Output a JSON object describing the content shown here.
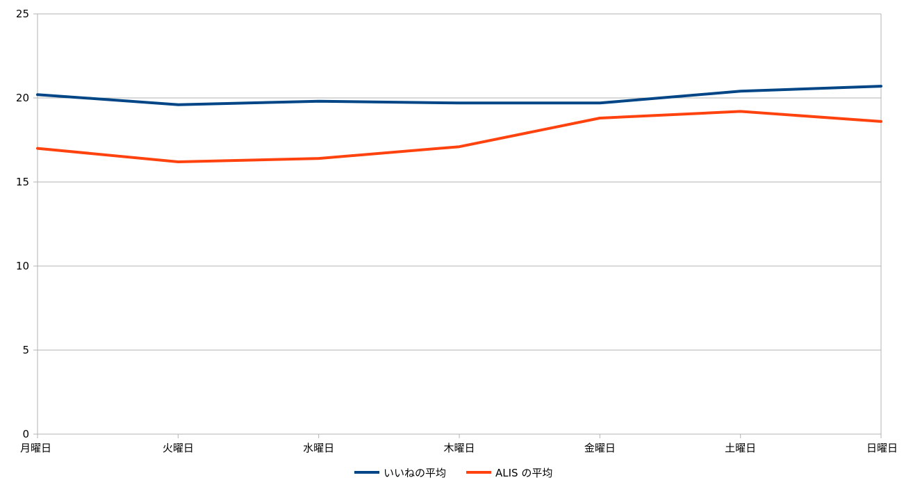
{
  "chart_data": {
    "type": "line",
    "categories": [
      "月曜日",
      "火曜日",
      "水曜日",
      "木曜日",
      "金曜日",
      "土曜日",
      "日曜日"
    ],
    "series": [
      {
        "name": "いいねの平均",
        "color": "#004586",
        "values": [
          20.2,
          19.6,
          19.8,
          19.7,
          19.7,
          20.4,
          20.7
        ]
      },
      {
        "name": "ALIS の平均",
        "color": "#ff420e",
        "values": [
          17.0,
          16.2,
          16.4,
          17.1,
          18.8,
          19.2,
          18.6
        ]
      }
    ],
    "yticks": [
      0,
      5,
      10,
      15,
      20,
      25
    ],
    "ylim": [
      0,
      25
    ],
    "grid": true,
    "legend_position": "bottom-center",
    "title": "",
    "xlabel": "",
    "ylabel": ""
  }
}
